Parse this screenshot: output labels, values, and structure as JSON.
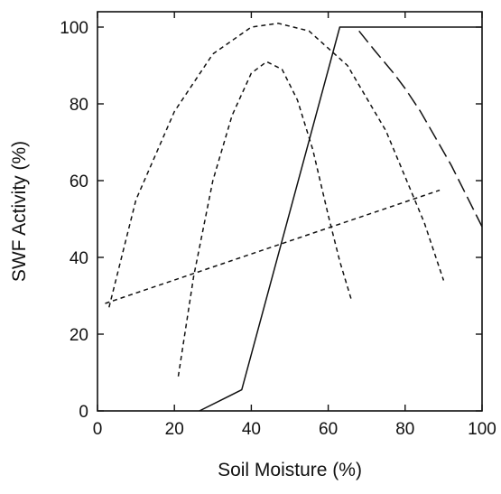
{
  "chart_data": {
    "type": "line",
    "title": "",
    "xlabel": "Soil Moisture (%)",
    "ylabel": "SWF Activity (%)",
    "xlim": [
      0,
      100
    ],
    "ylim": [
      0,
      104
    ],
    "xticks": [
      "0",
      "20",
      "40",
      "60",
      "80",
      "100"
    ],
    "yticks": [
      "0",
      "20",
      "40",
      "60",
      "80",
      "100"
    ],
    "grid": false,
    "series": [
      {
        "style": "solid",
        "x": [
          26.5,
          37.5,
          63,
          100
        ],
        "y": [
          0,
          5.5,
          100,
          100
        ]
      },
      {
        "style": "long-dash",
        "x": [
          68,
          72,
          77,
          80,
          84,
          88,
          92,
          96,
          100
        ],
        "y": [
          99,
          94,
          88,
          84,
          78,
          71,
          64,
          56,
          48
        ]
      },
      {
        "style": "short-dash",
        "x": [
          3,
          10,
          20,
          30,
          40,
          47,
          55,
          65,
          75,
          85,
          90
        ],
        "y": [
          27,
          55,
          78,
          93,
          100,
          101,
          99,
          90,
          73,
          49,
          34
        ]
      },
      {
        "style": "short-dash",
        "x": [
          21,
          25,
          30,
          35,
          40,
          44,
          48,
          52,
          56,
          60,
          63,
          66
        ],
        "y": [
          9,
          35,
          60,
          77,
          88,
          91,
          89,
          81,
          68,
          51,
          39,
          29
        ]
      },
      {
        "style": "short-dash",
        "x": [
          2,
          89
        ],
        "y": [
          28,
          57.5
        ]
      }
    ]
  }
}
